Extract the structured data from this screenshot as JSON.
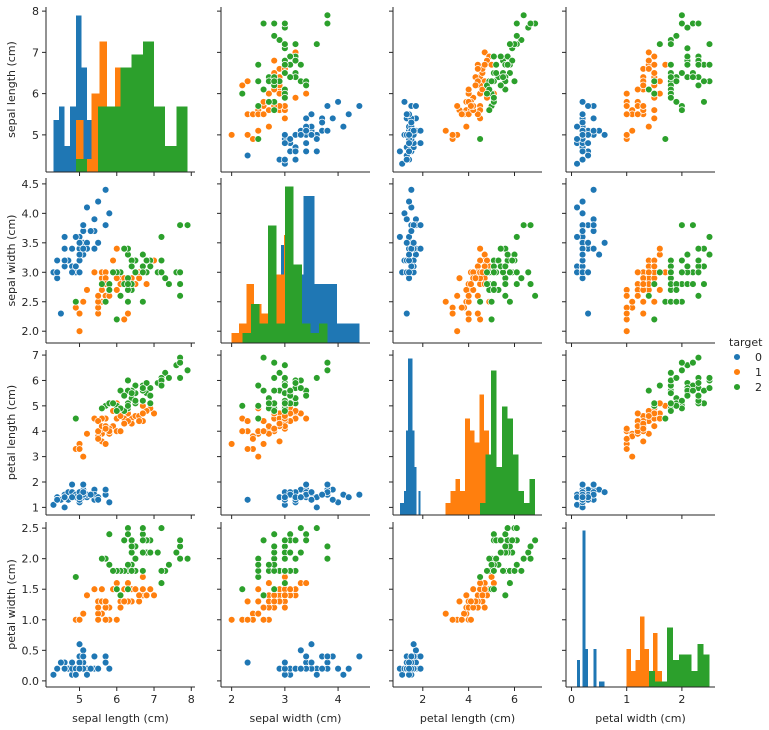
{
  "chart_data": {
    "type": "scatter",
    "subtype": "pairplot",
    "variables": [
      "sepal length (cm)",
      "sepal width (cm)",
      "petal length (cm)",
      "petal width (cm)"
    ],
    "diagonal": "histogram",
    "hue": "target",
    "legend": {
      "title": "target",
      "position": "right",
      "entries": [
        {
          "label": "0",
          "color": "#1f77b4"
        },
        {
          "label": "1",
          "color": "#ff7f0e"
        },
        {
          "label": "2",
          "color": "#2ca02c"
        }
      ]
    },
    "axes": [
      {
        "name": "sepal length (cm)",
        "range": [
          4.1,
          8.1
        ],
        "ticks": [
          5,
          6,
          7,
          8
        ],
        "tick_labels": [
          "5",
          "6",
          "7",
          "8"
        ]
      },
      {
        "name": "sepal width (cm)",
        "range": [
          1.8,
          4.6
        ],
        "ticks": [
          2.0,
          2.5,
          3.0,
          3.5,
          4.0,
          4.5
        ],
        "tick_labels": [
          "2.0",
          "2.5",
          "3.0",
          "3.5",
          "4.0",
          "4.5"
        ],
        "x_ticks": [
          2,
          3,
          4
        ],
        "x_tick_labels": [
          "2",
          "3",
          "4"
        ]
      },
      {
        "name": "petal length (cm)",
        "range": [
          0.7,
          7.2
        ],
        "ticks": [
          1,
          2,
          3,
          4,
          5,
          6,
          7
        ],
        "tick_labels": [
          "1",
          "2",
          "3",
          "4",
          "5",
          "6",
          "7"
        ],
        "x_ticks": [
          2,
          4,
          6
        ],
        "x_tick_labels": [
          "2",
          "4",
          "6"
        ]
      },
      {
        "name": "petal width (cm)",
        "range": [
          -0.1,
          2.6
        ],
        "ticks": [
          0.0,
          0.5,
          1.0,
          1.5,
          2.0,
          2.5
        ],
        "tick_labels": [
          "0.0",
          "0.5",
          "1.0",
          "1.5",
          "2.0",
          "2.5"
        ],
        "x_ticks": [
          0,
          1,
          2
        ],
        "x_tick_labels": [
          "0",
          "1",
          "2"
        ]
      }
    ],
    "series": [
      {
        "name": "0",
        "color": "#1f77b4",
        "points": [
          [
            5.1,
            3.5,
            1.4,
            0.2
          ],
          [
            4.9,
            3.0,
            1.4,
            0.2
          ],
          [
            4.7,
            3.2,
            1.3,
            0.2
          ],
          [
            4.6,
            3.1,
            1.5,
            0.2
          ],
          [
            5.0,
            3.6,
            1.4,
            0.2
          ],
          [
            5.4,
            3.9,
            1.7,
            0.4
          ],
          [
            4.6,
            3.4,
            1.4,
            0.3
          ],
          [
            5.0,
            3.4,
            1.5,
            0.2
          ],
          [
            4.4,
            2.9,
            1.4,
            0.2
          ],
          [
            4.9,
            3.1,
            1.5,
            0.1
          ],
          [
            5.4,
            3.7,
            1.5,
            0.2
          ],
          [
            4.8,
            3.4,
            1.6,
            0.2
          ],
          [
            4.8,
            3.0,
            1.4,
            0.1
          ],
          [
            4.3,
            3.0,
            1.1,
            0.1
          ],
          [
            5.8,
            4.0,
            1.2,
            0.2
          ],
          [
            5.7,
            4.4,
            1.5,
            0.4
          ],
          [
            5.4,
            3.9,
            1.3,
            0.4
          ],
          [
            5.1,
            3.5,
            1.4,
            0.3
          ],
          [
            5.7,
            3.8,
            1.7,
            0.3
          ],
          [
            5.1,
            3.8,
            1.5,
            0.3
          ],
          [
            5.4,
            3.4,
            1.7,
            0.2
          ],
          [
            5.1,
            3.7,
            1.5,
            0.4
          ],
          [
            4.6,
            3.6,
            1.0,
            0.2
          ],
          [
            5.1,
            3.3,
            1.7,
            0.5
          ],
          [
            4.8,
            3.4,
            1.9,
            0.2
          ],
          [
            5.0,
            3.0,
            1.6,
            0.2
          ],
          [
            5.0,
            3.4,
            1.6,
            0.4
          ],
          [
            5.2,
            3.5,
            1.5,
            0.2
          ],
          [
            5.2,
            3.4,
            1.4,
            0.2
          ],
          [
            4.7,
            3.2,
            1.6,
            0.2
          ],
          [
            4.8,
            3.1,
            1.6,
            0.2
          ],
          [
            5.4,
            3.4,
            1.5,
            0.4
          ],
          [
            5.2,
            4.1,
            1.5,
            0.1
          ],
          [
            5.5,
            4.2,
            1.4,
            0.2
          ],
          [
            4.9,
            3.1,
            1.5,
            0.2
          ],
          [
            5.0,
            3.2,
            1.2,
            0.2
          ],
          [
            5.5,
            3.5,
            1.3,
            0.2
          ],
          [
            4.9,
            3.6,
            1.4,
            0.1
          ],
          [
            4.4,
            3.0,
            1.3,
            0.2
          ],
          [
            5.1,
            3.4,
            1.5,
            0.2
          ],
          [
            5.0,
            3.5,
            1.3,
            0.3
          ],
          [
            4.5,
            2.3,
            1.3,
            0.3
          ],
          [
            4.4,
            3.2,
            1.3,
            0.2
          ],
          [
            5.0,
            3.5,
            1.6,
            0.6
          ],
          [
            5.1,
            3.8,
            1.9,
            0.4
          ],
          [
            4.8,
            3.0,
            1.4,
            0.3
          ],
          [
            5.1,
            3.8,
            1.6,
            0.2
          ],
          [
            4.6,
            3.2,
            1.4,
            0.2
          ],
          [
            5.3,
            3.7,
            1.5,
            0.2
          ],
          [
            5.0,
            3.3,
            1.4,
            0.2
          ]
        ]
      },
      {
        "name": "1",
        "color": "#ff7f0e",
        "points": [
          [
            7.0,
            3.2,
            4.7,
            1.4
          ],
          [
            6.4,
            3.2,
            4.5,
            1.5
          ],
          [
            6.9,
            3.1,
            4.9,
            1.5
          ],
          [
            5.5,
            2.3,
            4.0,
            1.3
          ],
          [
            6.5,
            2.8,
            4.6,
            1.5
          ],
          [
            5.7,
            2.8,
            4.5,
            1.3
          ],
          [
            6.3,
            3.3,
            4.7,
            1.6
          ],
          [
            4.9,
            2.4,
            3.3,
            1.0
          ],
          [
            6.6,
            2.9,
            4.6,
            1.3
          ],
          [
            5.2,
            2.7,
            3.9,
            1.4
          ],
          [
            5.0,
            2.0,
            3.5,
            1.0
          ],
          [
            5.9,
            3.0,
            4.2,
            1.5
          ],
          [
            6.0,
            2.2,
            4.0,
            1.0
          ],
          [
            6.1,
            2.9,
            4.7,
            1.4
          ],
          [
            5.6,
            2.9,
            3.6,
            1.3
          ],
          [
            6.7,
            3.1,
            4.4,
            1.4
          ],
          [
            5.6,
            3.0,
            4.5,
            1.5
          ],
          [
            5.8,
            2.7,
            4.1,
            1.0
          ],
          [
            6.2,
            2.2,
            4.5,
            1.5
          ],
          [
            5.6,
            2.5,
            3.9,
            1.1
          ],
          [
            5.9,
            3.2,
            4.8,
            1.8
          ],
          [
            6.1,
            2.8,
            4.0,
            1.3
          ],
          [
            6.3,
            2.5,
            4.9,
            1.5
          ],
          [
            6.1,
            2.8,
            4.7,
            1.2
          ],
          [
            6.4,
            2.9,
            4.3,
            1.3
          ],
          [
            6.6,
            3.0,
            4.4,
            1.4
          ],
          [
            6.8,
            2.8,
            4.8,
            1.4
          ],
          [
            6.7,
            3.0,
            5.0,
            1.7
          ],
          [
            6.0,
            2.9,
            4.5,
            1.5
          ],
          [
            5.7,
            2.6,
            3.5,
            1.0
          ],
          [
            5.5,
            2.4,
            3.8,
            1.1
          ],
          [
            5.5,
            2.4,
            3.7,
            1.0
          ],
          [
            5.8,
            2.7,
            3.9,
            1.2
          ],
          [
            6.0,
            2.7,
            5.1,
            1.6
          ],
          [
            5.4,
            3.0,
            4.5,
            1.5
          ],
          [
            6.0,
            3.4,
            4.5,
            1.6
          ],
          [
            6.7,
            3.1,
            4.7,
            1.5
          ],
          [
            6.3,
            2.3,
            4.4,
            1.3
          ],
          [
            5.6,
            3.0,
            4.1,
            1.3
          ],
          [
            5.5,
            2.5,
            4.0,
            1.3
          ],
          [
            5.5,
            2.6,
            4.4,
            1.2
          ],
          [
            6.1,
            3.0,
            4.6,
            1.4
          ],
          [
            5.8,
            2.6,
            4.0,
            1.2
          ],
          [
            5.0,
            2.3,
            3.3,
            1.0
          ],
          [
            5.6,
            2.7,
            4.2,
            1.3
          ],
          [
            5.7,
            3.0,
            4.2,
            1.2
          ],
          [
            5.7,
            2.9,
            4.2,
            1.3
          ],
          [
            6.2,
            2.9,
            4.3,
            1.3
          ],
          [
            5.1,
            2.5,
            3.0,
            1.1
          ],
          [
            5.7,
            2.8,
            4.1,
            1.3
          ]
        ]
      },
      {
        "name": "2",
        "color": "#2ca02c",
        "points": [
          [
            6.3,
            3.3,
            6.0,
            2.5
          ],
          [
            5.8,
            2.7,
            5.1,
            1.9
          ],
          [
            7.1,
            3.0,
            5.9,
            2.1
          ],
          [
            6.3,
            2.9,
            5.6,
            1.8
          ],
          [
            6.5,
            3.0,
            5.8,
            2.2
          ],
          [
            7.6,
            3.0,
            6.6,
            2.1
          ],
          [
            4.9,
            2.5,
            4.5,
            1.7
          ],
          [
            7.3,
            2.9,
            6.3,
            1.8
          ],
          [
            6.7,
            2.5,
            5.8,
            1.8
          ],
          [
            7.2,
            3.6,
            6.1,
            2.5
          ],
          [
            6.5,
            3.2,
            5.1,
            2.0
          ],
          [
            6.4,
            2.7,
            5.3,
            1.9
          ],
          [
            6.8,
            3.0,
            5.5,
            2.1
          ],
          [
            5.7,
            2.5,
            5.0,
            2.0
          ],
          [
            5.8,
            2.8,
            5.1,
            2.4
          ],
          [
            6.4,
            3.2,
            5.3,
            2.3
          ],
          [
            6.5,
            3.0,
            5.5,
            1.8
          ],
          [
            7.7,
            3.8,
            6.7,
            2.2
          ],
          [
            7.7,
            2.6,
            6.9,
            2.3
          ],
          [
            6.0,
            2.2,
            5.0,
            1.5
          ],
          [
            6.9,
            3.2,
            5.7,
            2.3
          ],
          [
            5.6,
            2.8,
            4.9,
            2.0
          ],
          [
            7.7,
            2.8,
            6.7,
            2.0
          ],
          [
            6.3,
            2.7,
            4.9,
            1.8
          ],
          [
            6.7,
            3.3,
            5.7,
            2.1
          ],
          [
            7.2,
            3.2,
            6.0,
            1.8
          ],
          [
            6.2,
            2.8,
            4.8,
            1.8
          ],
          [
            6.1,
            3.0,
            4.9,
            1.8
          ],
          [
            6.4,
            2.8,
            5.6,
            2.1
          ],
          [
            7.2,
            3.0,
            5.8,
            1.6
          ],
          [
            7.4,
            2.8,
            6.1,
            1.9
          ],
          [
            7.9,
            3.8,
            6.4,
            2.0
          ],
          [
            6.4,
            2.8,
            5.6,
            2.2
          ],
          [
            6.3,
            2.8,
            5.1,
            1.5
          ],
          [
            6.1,
            2.6,
            5.6,
            1.4
          ],
          [
            7.7,
            3.0,
            6.1,
            2.3
          ],
          [
            6.3,
            3.4,
            5.6,
            2.4
          ],
          [
            6.4,
            3.1,
            5.5,
            1.8
          ],
          [
            6.0,
            3.0,
            4.8,
            1.8
          ],
          [
            6.9,
            3.1,
            5.4,
            2.1
          ],
          [
            6.7,
            3.1,
            5.6,
            2.4
          ],
          [
            6.9,
            3.1,
            5.1,
            2.3
          ],
          [
            5.8,
            2.7,
            5.1,
            1.9
          ],
          [
            6.8,
            3.2,
            5.9,
            2.3
          ],
          [
            6.7,
            3.3,
            5.7,
            2.5
          ],
          [
            6.7,
            3.0,
            5.2,
            2.3
          ],
          [
            6.3,
            2.5,
            5.0,
            1.9
          ],
          [
            6.5,
            3.0,
            5.2,
            2.0
          ],
          [
            6.2,
            3.4,
            5.4,
            2.3
          ],
          [
            5.9,
            3.0,
            5.1,
            1.8
          ]
        ]
      }
    ]
  }
}
